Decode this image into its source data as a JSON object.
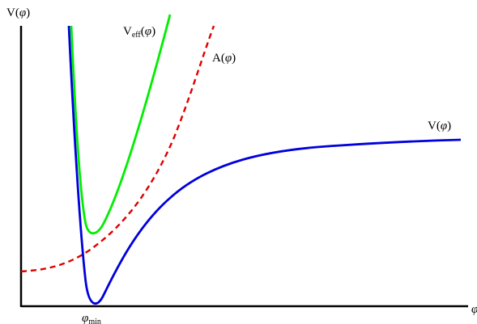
{
  "axes": {
    "y_label": {
      "text": "V(",
      "var": "φ",
      "close": ")"
    },
    "x_label": {
      "var": "φ"
    },
    "x_marker": {
      "var": "φ",
      "sub": "min"
    }
  },
  "curves": {
    "V": {
      "label": {
        "text": "V(",
        "var": "φ",
        "close": ")"
      },
      "color": "#0000dd",
      "style": "solid"
    },
    "A": {
      "label": {
        "text": "A(",
        "var": "φ",
        "close": ")"
      },
      "color": "#dd0000",
      "style": "dashed"
    },
    "Veff": {
      "label": {
        "text": "V",
        "sub": "eff",
        "paren": "(",
        "var": "φ",
        "close": ")"
      },
      "color": "#00ee00",
      "style": "solid"
    }
  }
}
